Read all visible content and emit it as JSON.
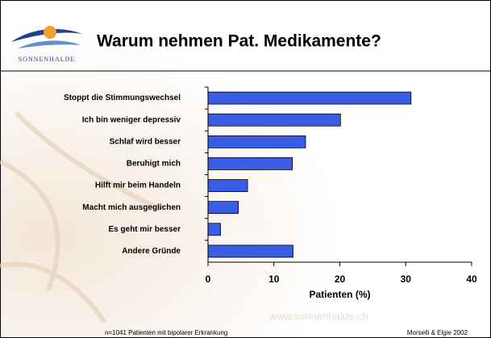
{
  "logo": "SONNENHALDE",
  "watermark": "www.sonnenhalde.ch",
  "footnote": "n=1041 Patienten mit bipolarer Erkrankung",
  "source": "Morselli & Elgie 2002",
  "chart_data": {
    "type": "bar",
    "orientation": "horizontal",
    "title": "Warum nehmen Pat. Medikamente?",
    "categories": [
      "Stoppt die Stimmungswechsel",
      "Ich bin weniger depressiv",
      "Schlaf wird besser",
      "Beruhigt mich",
      "Hilft mir beim Handeln",
      "Macht mich ausgeglichen",
      "Es geht mir besser",
      "Andere Gründe"
    ],
    "values": [
      30.8,
      20.1,
      14.8,
      12.8,
      6,
      4.6,
      1.9,
      12.9
    ],
    "color": "#3a5de6",
    "xlim": [
      0,
      40
    ],
    "xticks": [
      0,
      10,
      20,
      30,
      40
    ],
    "xlabel": "Patienten (%)",
    "grid": false
  }
}
